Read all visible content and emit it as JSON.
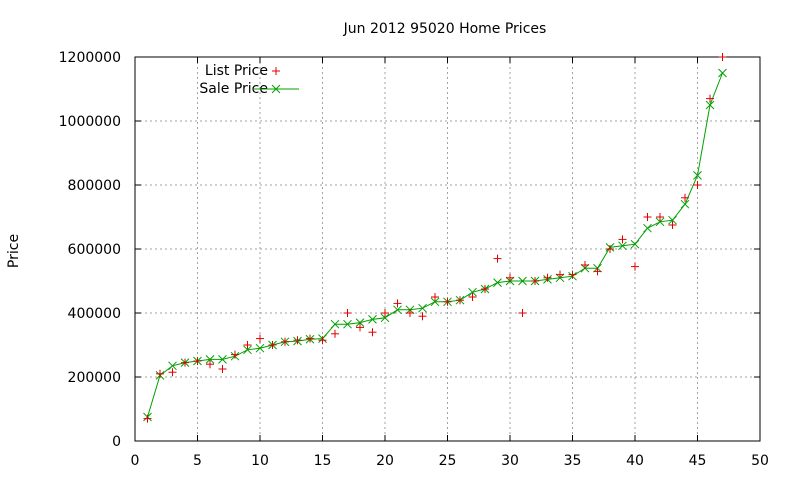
{
  "chart_data": {
    "type": "line",
    "title": "Jun 2012 95020 Home Prices",
    "xlabel": "",
    "ylabel": "Price",
    "xlim": [
      0,
      50
    ],
    "ylim": [
      0,
      1200000
    ],
    "x_ticks": [
      "0",
      "5",
      "10",
      "15",
      "20",
      "25",
      "30",
      "35",
      "40",
      "45",
      "50"
    ],
    "y_ticks": [
      "0",
      "200000",
      "400000",
      "600000",
      "800000",
      "1000000",
      "1200000"
    ],
    "grid": true,
    "legend_position": "top-left",
    "series": [
      {
        "name": "List Price",
        "style": "points",
        "marker": "plus",
        "color": "#e00000",
        "points": [
          [
            1,
            70000
          ],
          [
            2,
            210000
          ],
          [
            3,
            215000
          ],
          [
            4,
            245000
          ],
          [
            5,
            250000
          ],
          [
            6,
            240000
          ],
          [
            7,
            225000
          ],
          [
            8,
            270000
          ],
          [
            9,
            300000
          ],
          [
            10,
            320000
          ],
          [
            11,
            300000
          ],
          [
            12,
            310000
          ],
          [
            13,
            315000
          ],
          [
            14,
            320000
          ],
          [
            15,
            315000
          ],
          [
            16,
            335000
          ],
          [
            17,
            400000
          ],
          [
            18,
            355000
          ],
          [
            19,
            340000
          ],
          [
            20,
            400000
          ],
          [
            21,
            430000
          ],
          [
            22,
            400000
          ],
          [
            23,
            390000
          ],
          [
            24,
            450000
          ],
          [
            25,
            435000
          ],
          [
            26,
            440000
          ],
          [
            27,
            450000
          ],
          [
            28,
            475000
          ],
          [
            29,
            570000
          ],
          [
            30,
            510000
          ],
          [
            31,
            400000
          ],
          [
            32,
            500000
          ],
          [
            33,
            510000
          ],
          [
            34,
            520000
          ],
          [
            35,
            520000
          ],
          [
            36,
            550000
          ],
          [
            37,
            530000
          ],
          [
            38,
            600000
          ],
          [
            39,
            630000
          ],
          [
            40,
            545000
          ],
          [
            41,
            700000
          ],
          [
            42,
            700000
          ],
          [
            43,
            675000
          ],
          [
            44,
            760000
          ],
          [
            45,
            800000
          ],
          [
            46,
            1070000
          ],
          [
            47,
            1200000
          ]
        ]
      },
      {
        "name": "Sale Price",
        "style": "linespoints",
        "marker": "cross",
        "color": "#00a000",
        "points": [
          [
            1,
            75000
          ],
          [
            2,
            205000
          ],
          [
            3,
            235000
          ],
          [
            4,
            245000
          ],
          [
            5,
            250000
          ],
          [
            6,
            255000
          ],
          [
            7,
            255000
          ],
          [
            8,
            265000
          ],
          [
            9,
            285000
          ],
          [
            10,
            290000
          ],
          [
            11,
            300000
          ],
          [
            12,
            310000
          ],
          [
            13,
            312000
          ],
          [
            14,
            318000
          ],
          [
            15,
            320000
          ],
          [
            16,
            365000
          ],
          [
            17,
            365000
          ],
          [
            18,
            370000
          ],
          [
            19,
            380000
          ],
          [
            20,
            385000
          ],
          [
            21,
            410000
          ],
          [
            22,
            410000
          ],
          [
            23,
            415000
          ],
          [
            24,
            435000
          ],
          [
            25,
            435000
          ],
          [
            26,
            440000
          ],
          [
            27,
            465000
          ],
          [
            28,
            475000
          ],
          [
            29,
            495000
          ],
          [
            30,
            500000
          ],
          [
            31,
            500000
          ],
          [
            32,
            500000
          ],
          [
            33,
            505000
          ],
          [
            34,
            510000
          ],
          [
            35,
            515000
          ],
          [
            36,
            540000
          ],
          [
            37,
            540000
          ],
          [
            38,
            605000
          ],
          [
            39,
            610000
          ],
          [
            40,
            615000
          ],
          [
            41,
            665000
          ],
          [
            42,
            685000
          ],
          [
            43,
            690000
          ],
          [
            44,
            740000
          ],
          [
            45,
            830000
          ],
          [
            46,
            1050000
          ],
          [
            47,
            1150000
          ]
        ]
      }
    ]
  }
}
